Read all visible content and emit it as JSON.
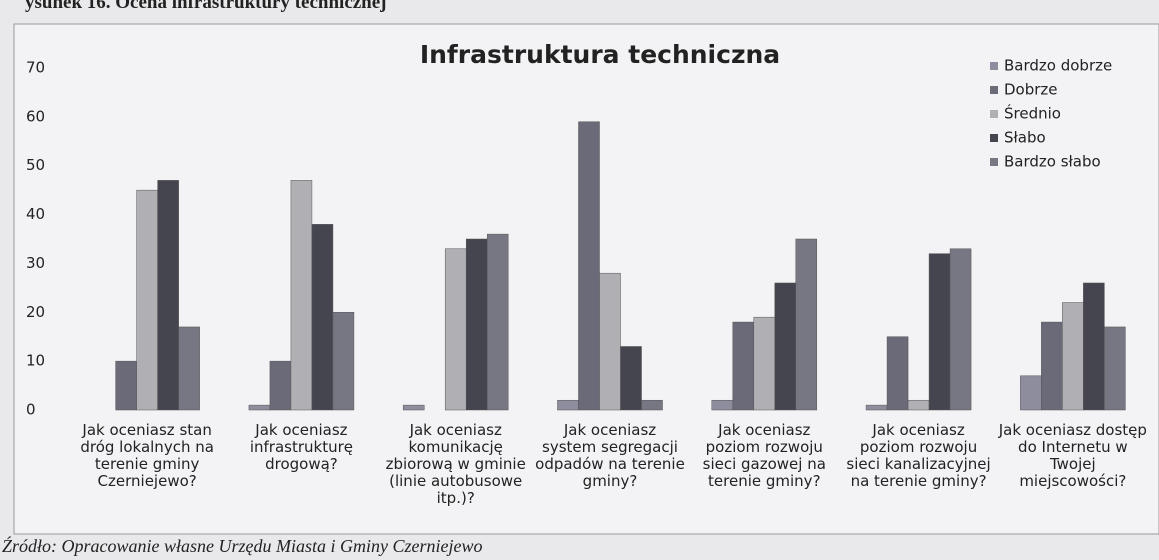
{
  "caption": "ysunek 16. Ocena infrastruktury technicznej",
  "source": "Źródło: Opracowanie własne Urzędu Miasta i Gminy Czerniejewo",
  "chart_data": {
    "type": "bar",
    "title": "Infrastruktura techniczna",
    "categories": [
      "Jak oceniasz stan dróg lokalnych na terenie gminy Czerniejewo?",
      "Jak oceniasz infrastrukturę drogową?",
      "Jak oceniasz komunikację zbiorową w gminie (linie autobusowe itp.)?",
      "Jak oceniasz system segregacji odpadów na terenie gminy?",
      "Jak oceniasz poziom rozwoju sieci gazowej na terenie gminy?",
      "Jak oceniasz poziom rozwoju sieci kanalizacyjnej na terenie gminy?",
      "Jak oceniasz dostęp do Internetu w Twojej miejscowości?"
    ],
    "series": [
      {
        "name": "Bardzo dobrze",
        "color": "#8d8d9e",
        "values": [
          0,
          1,
          1,
          2,
          2,
          1,
          7
        ]
      },
      {
        "name": "Dobrze",
        "color": "#6a6a78",
        "values": [
          10,
          10,
          0,
          59,
          18,
          15,
          18
        ]
      },
      {
        "name": "Średnio",
        "color": "#b0b0b4",
        "values": [
          45,
          47,
          33,
          28,
          19,
          2,
          22
        ]
      },
      {
        "name": "Słabo",
        "color": "#45454f",
        "values": [
          47,
          38,
          35,
          13,
          26,
          32,
          26
        ]
      },
      {
        "name": "Bardzo słabo",
        "color": "#777783",
        "values": [
          17,
          20,
          36,
          2,
          35,
          33,
          17
        ]
      }
    ],
    "ylim": [
      0,
      70
    ],
    "yticks": [
      0,
      10,
      20,
      30,
      40,
      50,
      60,
      70
    ],
    "grid": false,
    "legend": "top-right"
  }
}
